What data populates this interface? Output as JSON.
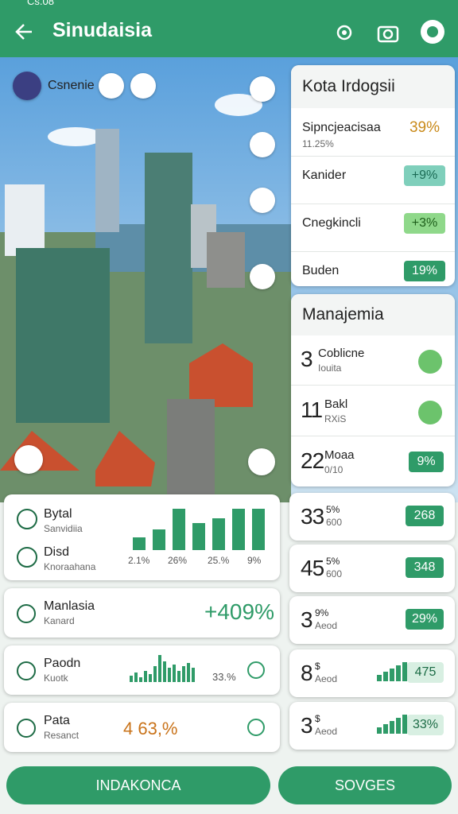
{
  "status_bar": {
    "time": "Cs.08"
  },
  "header": {
    "title": "Sinudaisia"
  },
  "map_chip": {
    "label": "Csnenie"
  },
  "city_panel": {
    "title": "Kota Irdogsii",
    "rows": [
      {
        "label": "Sipncjeacisaa",
        "sublabel": "11.25%",
        "value": "39%"
      },
      {
        "label": "Kanider",
        "value": "+9%"
      },
      {
        "label": "Cnegkincli",
        "value": "+3%"
      },
      {
        "label": "Buden",
        "value": "19%"
      }
    ]
  },
  "management_panel": {
    "title": "Manajemia",
    "rows": [
      {
        "number": "3",
        "label": "Coblicne",
        "sublabel": "Iouita"
      },
      {
        "number": "11",
        "label": "Bakl",
        "sublabel": "RXiS"
      },
      {
        "number": "22",
        "label": "Moaa",
        "sublabel": "0/10",
        "value": "9%"
      }
    ]
  },
  "stat_cards": [
    {
      "number": "33",
      "unit": "5%",
      "sublabel": "600",
      "value": "268"
    },
    {
      "number": "45",
      "unit": "5%",
      "sublabel": "600",
      "value": "348"
    },
    {
      "number": "3",
      "unit": "9%",
      "sublabel": "Aeod",
      "value": "29%"
    },
    {
      "number": "8",
      "unit": "$",
      "sublabel": "Aeod",
      "value": "475"
    },
    {
      "number": "3",
      "unit": "$",
      "sublabel": "Aeod",
      "value": "33%"
    }
  ],
  "summary_cards": [
    {
      "items": [
        {
          "label": "Bytal",
          "sublabel": "Sanvidiia"
        },
        {
          "label": "Disd",
          "sublabel": "Knoraahana"
        }
      ],
      "chart_labels": [
        "2.1%",
        "26%",
        "25.%",
        "9%"
      ]
    },
    {
      "label": "Manlasia",
      "sublabel": "Kanard",
      "value": "+409%"
    },
    {
      "label": "Paodn",
      "sublabel": "Kuotk",
      "value": "33.%"
    },
    {
      "label": "Pata",
      "sublabel": "Resanct",
      "value": "4 63,%"
    }
  ],
  "buttons": {
    "primary": "INDAKONCA",
    "secondary": "SOVGES"
  }
}
